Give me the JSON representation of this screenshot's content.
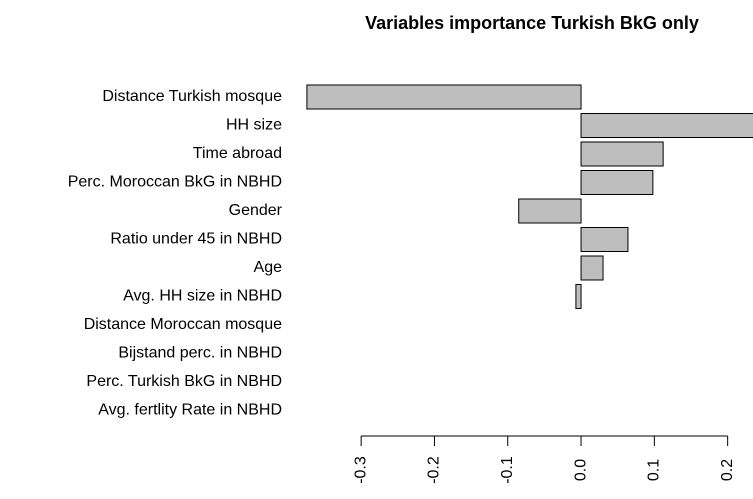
{
  "chart_data": {
    "type": "barh",
    "title": "Variables importance Turkish BkG only",
    "categories": [
      "Distance Turkish mosque",
      "HH size",
      "Time abroad",
      "Perc. Moroccan BkG in NBHD",
      "Gender",
      "Ratio under 45 in NBHD",
      "Age",
      "Avg. HH size in NBHD",
      "Distance Moroccan mosque",
      "Bijstand perc. in NBHD",
      "Perc. Turkish BkG in NBHD",
      "Avg. fertlity Rate in NBHD"
    ],
    "values": [
      -0.374,
      0.25,
      0.112,
      0.098,
      -0.085,
      0.064,
      0.03,
      -0.007,
      0,
      0,
      0,
      0
    ],
    "color": "#bebebe",
    "xlim": [
      -0.38,
      0.235
    ],
    "xticks": [
      -0.3,
      -0.2,
      -0.1,
      {
        "value": 0,
        "label": "0.0"
      },
      0.1,
      0.2
    ]
  }
}
